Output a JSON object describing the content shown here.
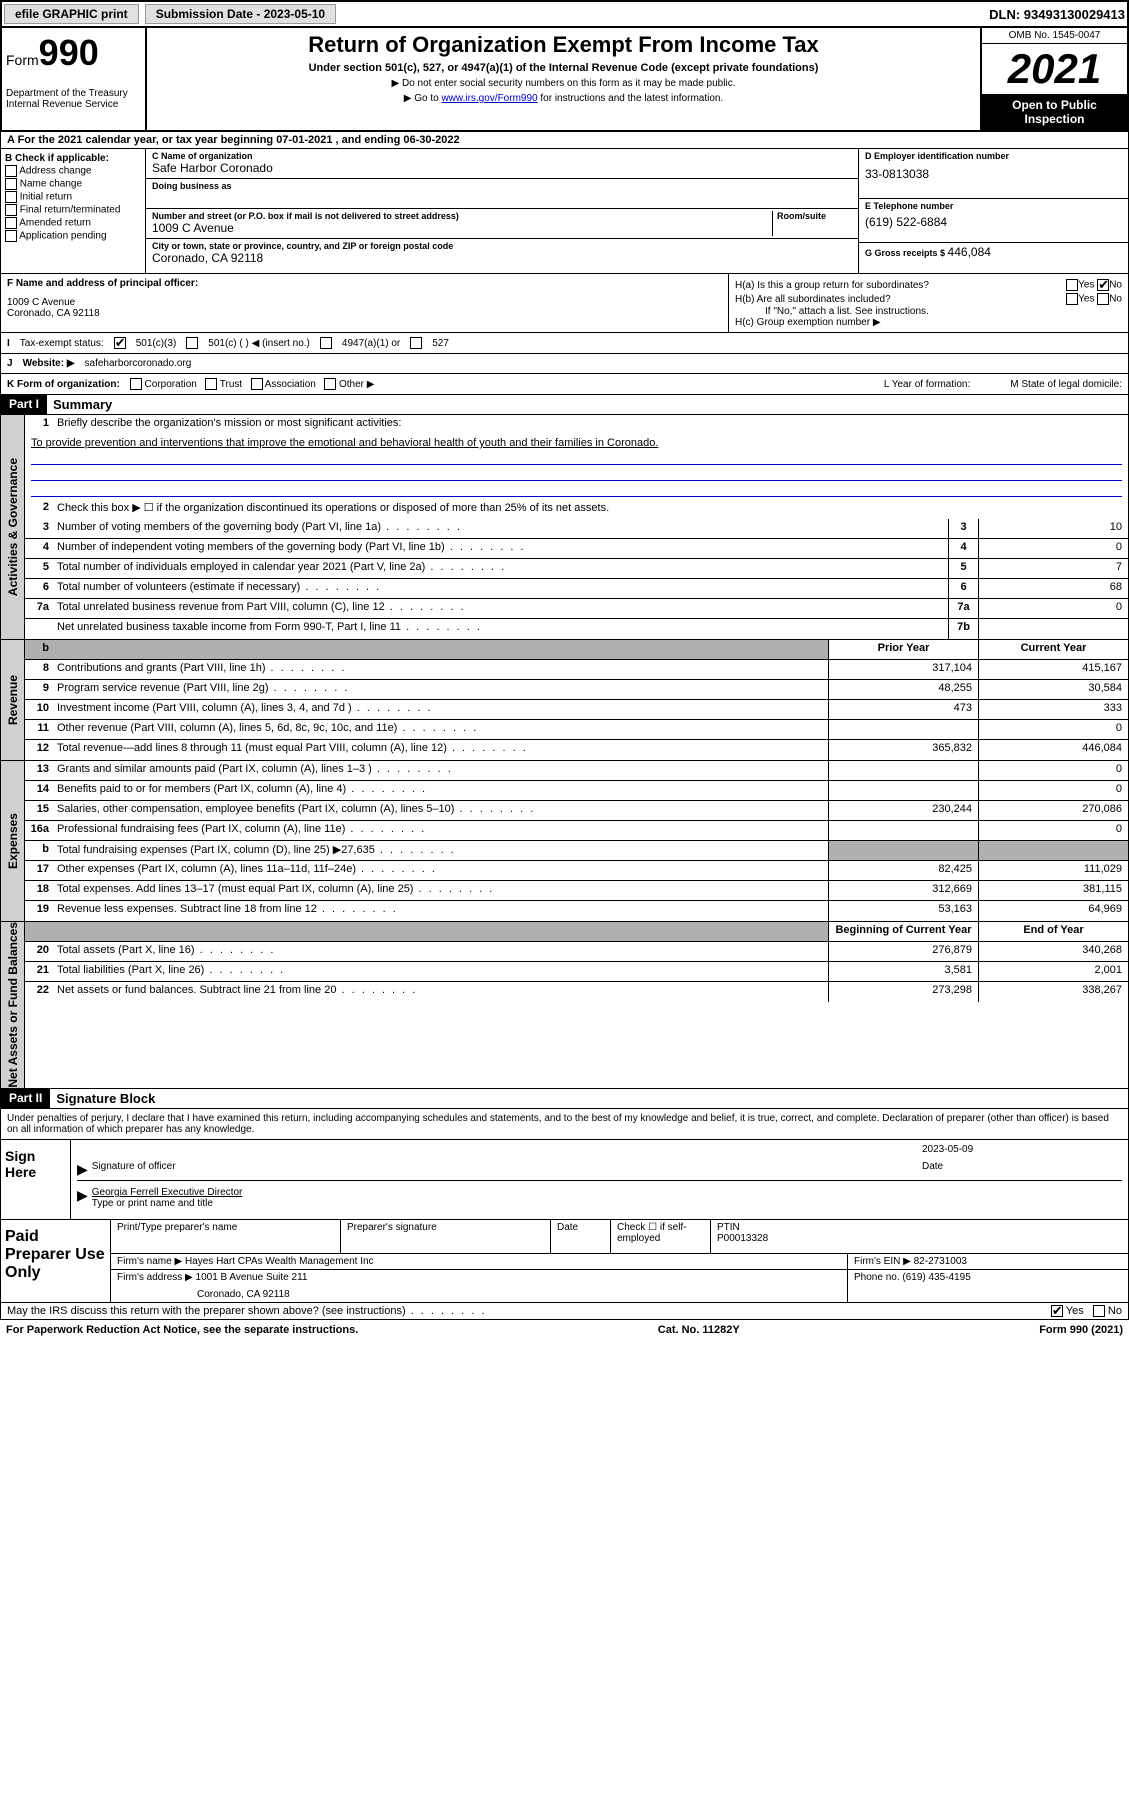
{
  "top": {
    "efile": "efile GRAPHIC print",
    "submission_label": "Submission Date - 2023-05-10",
    "dln": "DLN: 93493130029413"
  },
  "header": {
    "form_word": "Form",
    "form_num": "990",
    "dept": "Department of the Treasury Internal Revenue Service",
    "title": "Return of Organization Exempt From Income Tax",
    "subtitle": "Under section 501(c), 527, or 4947(a)(1) of the Internal Revenue Code (except private foundations)",
    "note1": "▶ Do not enter social security numbers on this form as it may be made public.",
    "note2_pre": "▶ Go to ",
    "note2_link": "www.irs.gov/Form990",
    "note2_post": " for instructions and the latest information.",
    "omb": "OMB No. 1545-0047",
    "year": "2021",
    "inspect": "Open to Public Inspection"
  },
  "row_a": "A For the 2021 calendar year, or tax year beginning 07-01-2021   , and ending 06-30-2022",
  "col_b": {
    "label": "B Check if applicable:",
    "opts": [
      "Address change",
      "Name change",
      "Initial return",
      "Final return/terminated",
      "Amended return",
      "Application pending"
    ]
  },
  "col_c": {
    "name_lbl": "C Name of organization",
    "name": "Safe Harbor Coronado",
    "dba_lbl": "Doing business as",
    "addr_lbl": "Number and street (or P.O. box if mail is not delivered to street address)",
    "room_lbl": "Room/suite",
    "addr": "1009 C Avenue",
    "city_lbl": "City or town, state or province, country, and ZIP or foreign postal code",
    "city": "Coronado, CA  92118"
  },
  "col_d": {
    "ein_lbl": "D Employer identification number",
    "ein": "33-0813038",
    "phone_lbl": "E Telephone number",
    "phone": "(619) 522-6884",
    "gross_lbl": "G Gross receipts $ ",
    "gross": "446,084"
  },
  "row_f": {
    "lbl": "F Name and address of principal officer:",
    "addr1": "1009 C Avenue",
    "addr2": "Coronado, CA  92118",
    "ha": "H(a)  Is this a group return for subordinates?",
    "hb": "H(b)  Are all subordinates included?",
    "hb_note": "If \"No,\" attach a list. See instructions.",
    "hc": "H(c)  Group exemption number ▶"
  },
  "row_i": {
    "lbl": "Tax-exempt status:",
    "o1": "501(c)(3)",
    "o2": "501(c) (  ) ◀ (insert no.)",
    "o3": "4947(a)(1) or",
    "o4": "527"
  },
  "row_j": {
    "lbl": "Website: ▶",
    "val": "safeharborcoronado.org"
  },
  "row_k": {
    "lbl": "K Form of organization:",
    "opts": [
      "Corporation",
      "Trust",
      "Association",
      "Other ▶"
    ],
    "l": "L Year of formation:",
    "m": "M State of legal domicile:"
  },
  "part1": {
    "hdr": "Part I",
    "title": "Summary",
    "l1_lbl": "Briefly describe the organization's mission or most significant activities:",
    "l1_txt": "To provide prevention and interventions that improve the emotional and behavioral health of youth and their families in Coronado.",
    "l2": "Check this box ▶ ☐  if the organization discontinued its operations or disposed of more than 25% of its net assets.",
    "lines_gov": [
      {
        "n": "3",
        "t": "Number of voting members of the governing body (Part VI, line 1a)",
        "b": "3",
        "v": "10"
      },
      {
        "n": "4",
        "t": "Number of independent voting members of the governing body (Part VI, line 1b)",
        "b": "4",
        "v": "0"
      },
      {
        "n": "5",
        "t": "Total number of individuals employed in calendar year 2021 (Part V, line 2a)",
        "b": "5",
        "v": "7"
      },
      {
        "n": "6",
        "t": "Total number of volunteers (estimate if necessary)",
        "b": "6",
        "v": "68"
      },
      {
        "n": "7a",
        "t": "Total unrelated business revenue from Part VIII, column (C), line 12",
        "b": "7a",
        "v": "0"
      },
      {
        "n": "",
        "t": "Net unrelated business taxable income from Form 990-T, Part I, line 11",
        "b": "7b",
        "v": ""
      }
    ],
    "col_hdr1": "Prior Year",
    "col_hdr2": "Current Year",
    "lines_rev": [
      {
        "n": "8",
        "t": "Contributions and grants (Part VIII, line 1h)",
        "v1": "317,104",
        "v2": "415,167"
      },
      {
        "n": "9",
        "t": "Program service revenue (Part VIII, line 2g)",
        "v1": "48,255",
        "v2": "30,584"
      },
      {
        "n": "10",
        "t": "Investment income (Part VIII, column (A), lines 3, 4, and 7d )",
        "v1": "473",
        "v2": "333"
      },
      {
        "n": "11",
        "t": "Other revenue (Part VIII, column (A), lines 5, 6d, 8c, 9c, 10c, and 11e)",
        "v1": "",
        "v2": "0"
      },
      {
        "n": "12",
        "t": "Total revenue—add lines 8 through 11 (must equal Part VIII, column (A), line 12)",
        "v1": "365,832",
        "v2": "446,084"
      }
    ],
    "lines_exp": [
      {
        "n": "13",
        "t": "Grants and similar amounts paid (Part IX, column (A), lines 1–3 )",
        "v1": "",
        "v2": "0"
      },
      {
        "n": "14",
        "t": "Benefits paid to or for members (Part IX, column (A), line 4)",
        "v1": "",
        "v2": "0"
      },
      {
        "n": "15",
        "t": "Salaries, other compensation, employee benefits (Part IX, column (A), lines 5–10)",
        "v1": "230,244",
        "v2": "270,086"
      },
      {
        "n": "16a",
        "t": "Professional fundraising fees (Part IX, column (A), line 11e)",
        "v1": "",
        "v2": "0"
      },
      {
        "n": "b",
        "t": "Total fundraising expenses (Part IX, column (D), line 25) ▶27,635",
        "v1": "shade",
        "v2": "shade"
      },
      {
        "n": "17",
        "t": "Other expenses (Part IX, column (A), lines 11a–11d, 11f–24e)",
        "v1": "82,425",
        "v2": "111,029"
      },
      {
        "n": "18",
        "t": "Total expenses. Add lines 13–17 (must equal Part IX, column (A), line 25)",
        "v1": "312,669",
        "v2": "381,115"
      },
      {
        "n": "19",
        "t": "Revenue less expenses. Subtract line 18 from line 12",
        "v1": "53,163",
        "v2": "64,969"
      }
    ],
    "col_hdr3": "Beginning of Current Year",
    "col_hdr4": "End of Year",
    "lines_net": [
      {
        "n": "20",
        "t": "Total assets (Part X, line 16)",
        "v1": "276,879",
        "v2": "340,268"
      },
      {
        "n": "21",
        "t": "Total liabilities (Part X, line 26)",
        "v1": "3,581",
        "v2": "2,001"
      },
      {
        "n": "22",
        "t": "Net assets or fund balances. Subtract line 21 from line 20",
        "v1": "273,298",
        "v2": "338,267"
      }
    ]
  },
  "part2": {
    "hdr": "Part II",
    "title": "Signature Block",
    "intro": "Under penalties of perjury, I declare that I have examined this return, including accompanying schedules and statements, and to the best of my knowledge and belief, it is true, correct, and complete. Declaration of preparer (other than officer) is based on all information of which preparer has any knowledge.",
    "sign_here": "Sign Here",
    "sig_officer": "Signature of officer",
    "sig_date": "2023-05-09",
    "date_lbl": "Date",
    "officer_name": "Georgia Ferrell Executive Director",
    "officer_lbl": "Type or print name and title",
    "paid_lbl": "Paid Preparer Use Only",
    "prep_name_lbl": "Print/Type preparer's name",
    "prep_sig_lbl": "Preparer's signature",
    "prep_date_lbl": "Date",
    "prep_check": "Check ☐ if self-employed",
    "ptin_lbl": "PTIN",
    "ptin": "P00013328",
    "firm_name_lbl": "Firm's name    ▶",
    "firm_name": "Hayes Hart CPAs Wealth Management Inc",
    "firm_ein_lbl": "Firm's EIN ▶",
    "firm_ein": "82-2731003",
    "firm_addr_lbl": "Firm's address ▶",
    "firm_addr1": "1001 B Avenue Suite 211",
    "firm_addr2": "Coronado, CA  92118",
    "firm_phone_lbl": "Phone no.",
    "firm_phone": "(619) 435-4195"
  },
  "footer": {
    "discuss": "May the IRS discuss this return with the preparer shown above? (see instructions)",
    "paperwork": "For Paperwork Reduction Act Notice, see the separate instructions.",
    "cat": "Cat. No. 11282Y",
    "form": "Form 990 (2021)"
  }
}
